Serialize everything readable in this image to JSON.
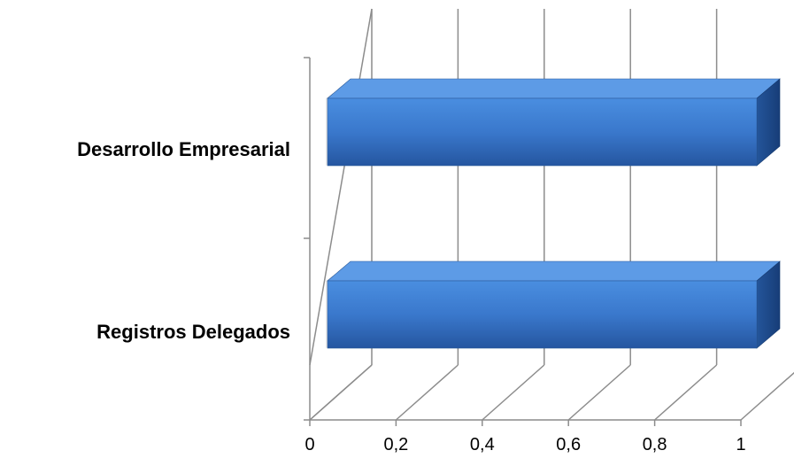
{
  "chart_data": {
    "type": "bar",
    "orientation": "horizontal",
    "style": "3d",
    "categories": [
      "Desarrollo Empresarial",
      "Registros Delegados"
    ],
    "values": [
      1,
      1
    ],
    "xlim": [
      0,
      1
    ],
    "x_ticks": [
      "0",
      "0,2",
      "0,4",
      "0,6",
      "0,8",
      "1"
    ],
    "grid": true,
    "legend": "none",
    "colors": {
      "bar_front_top": "#4a8ee0",
      "bar_front_bottom": "#2556a0",
      "bar_top": "#5d9be6",
      "bar_side": "#1d4688",
      "grid": "#8c8c8c"
    }
  }
}
